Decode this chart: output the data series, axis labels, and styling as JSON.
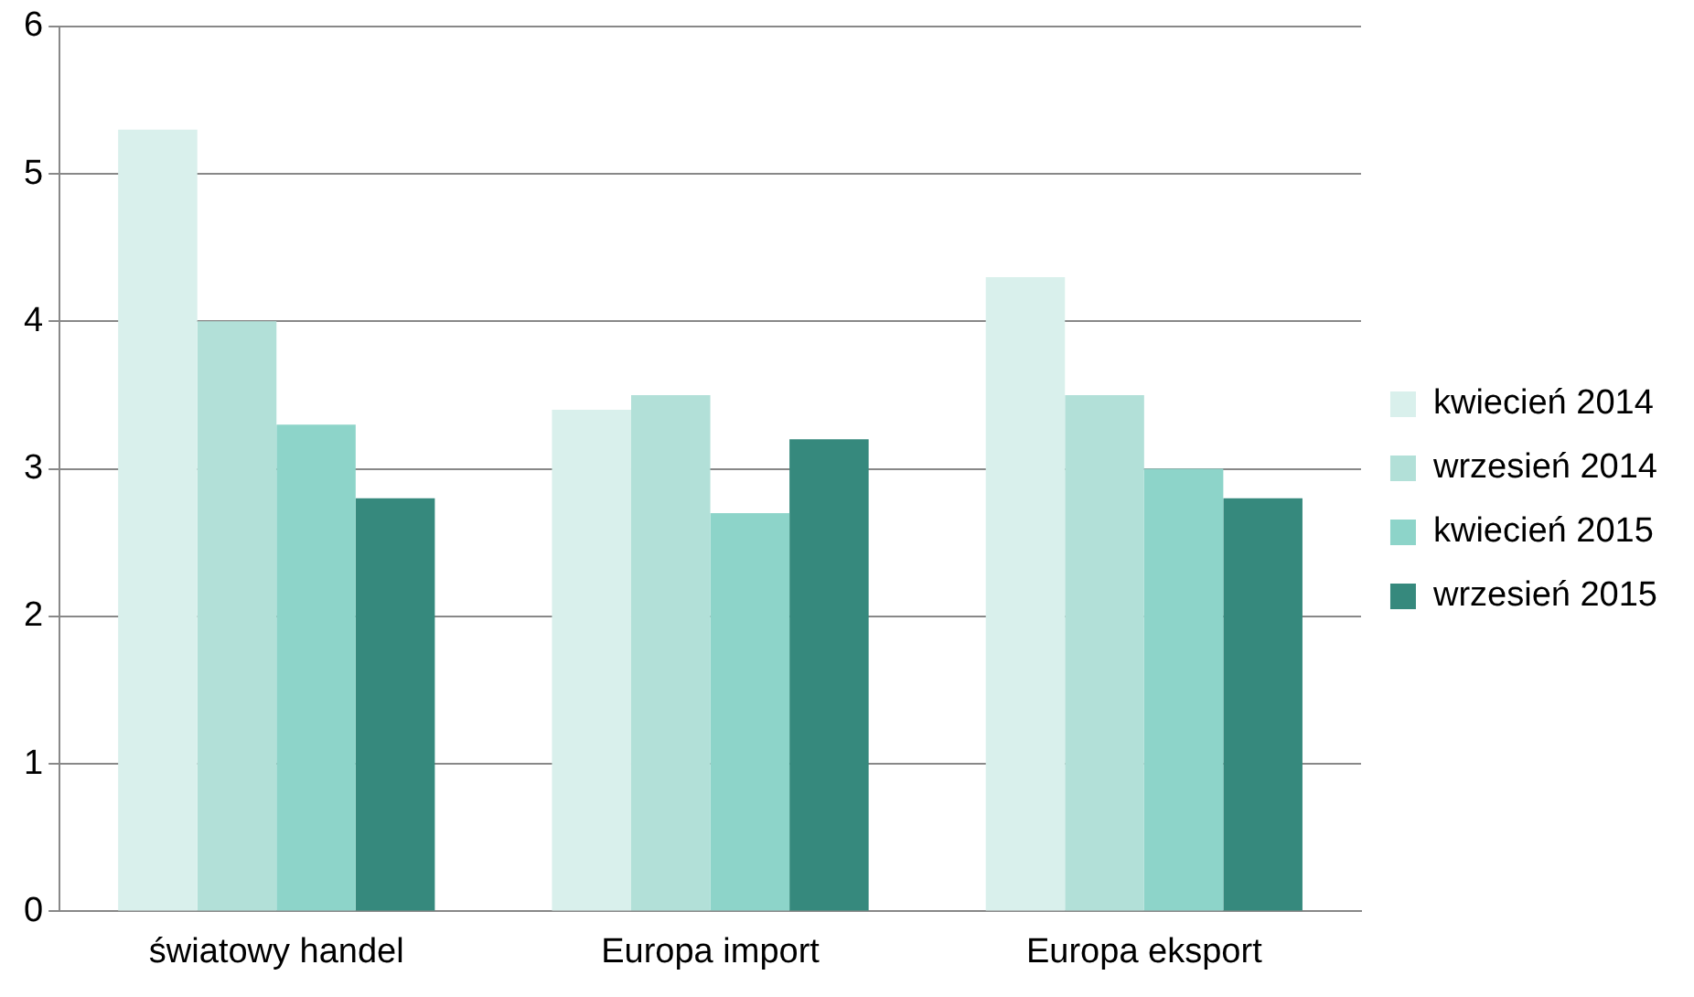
{
  "chart_data": {
    "type": "bar",
    "categories": [
      "światowy handel",
      "Europa import",
      "Europa eksport"
    ],
    "series": [
      {
        "name": "kwiecień 2014",
        "color": "#d9f0ec",
        "values": [
          5.3,
          3.4,
          4.3
        ]
      },
      {
        "name": "wrzesień 2014",
        "color": "#b2e0d8",
        "values": [
          4.0,
          3.5,
          3.5
        ]
      },
      {
        "name": "kwiecień 2015",
        "color": "#8dd4c9",
        "values": [
          3.3,
          2.7,
          3.0
        ]
      },
      {
        "name": "wrzesień 2015",
        "color": "#36897d",
        "values": [
          2.8,
          3.2,
          2.8
        ]
      }
    ],
    "ylim": [
      0,
      6
    ],
    "yticks": [
      0,
      1,
      2,
      3,
      4,
      5,
      6
    ],
    "grid": "y",
    "legend": "right"
  }
}
